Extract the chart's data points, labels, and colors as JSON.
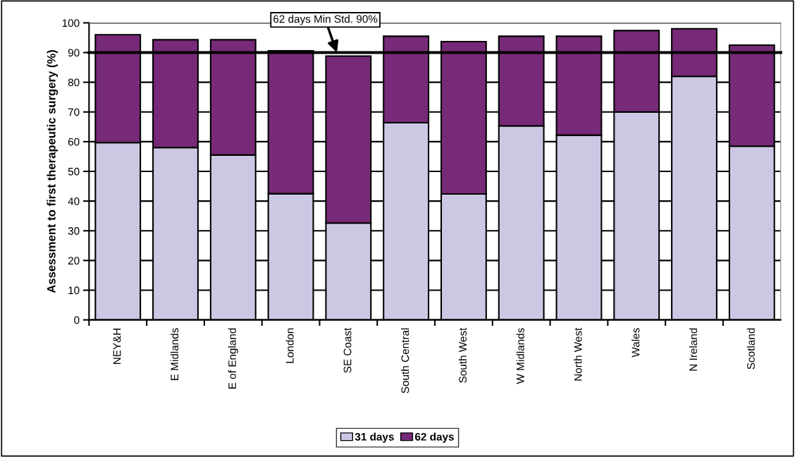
{
  "chart_data": {
    "type": "bar",
    "stacked": true,
    "ylabel": "Assessment to first therapeutic surgery (%)",
    "categories": [
      "NEY&H",
      "E Midlands",
      "E of England",
      "London",
      "SE Coast",
      "South Central",
      "South West",
      "W Midlands",
      "North West",
      "Wales",
      "N Ireland",
      "Scotland"
    ],
    "series": [
      {
        "name": "31 days",
        "color": "#ccc8e4",
        "values": [
          59.7,
          58,
          55.5,
          42.5,
          32.6,
          66.4,
          42.4,
          65.3,
          62.2,
          70,
          82,
          58.5
        ]
      },
      {
        "name": "62 days",
        "color": "#772a77",
        "values": [
          36.3,
          36.3,
          38.8,
          48.1,
          56.2,
          29.1,
          51.3,
          30.2,
          33.3,
          27.4,
          16,
          34
        ]
      }
    ],
    "ylim": [
      0,
      100
    ],
    "yticks": [
      0,
      10,
      20,
      30,
      40,
      50,
      60,
      70,
      80,
      90,
      100
    ],
    "grid": "y",
    "legend": "bottom",
    "ref_lines": [
      {
        "axis": "y",
        "value": 90,
        "label": "62 days Min Std. 90%",
        "color": "#000000"
      }
    ]
  }
}
